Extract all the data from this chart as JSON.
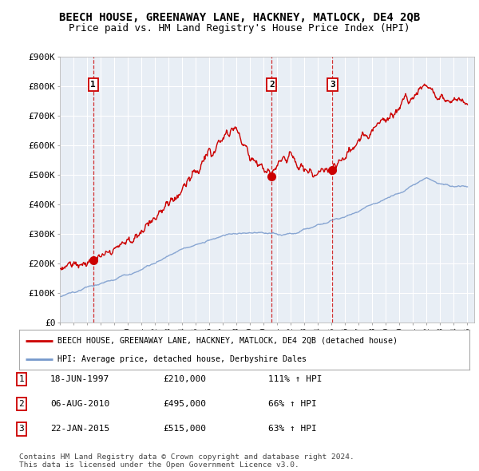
{
  "title": "BEECH HOUSE, GREENAWAY LANE, HACKNEY, MATLOCK, DE4 2QB",
  "subtitle": "Price paid vs. HM Land Registry's House Price Index (HPI)",
  "ylim": [
    0,
    900000
  ],
  "yticks": [
    0,
    100000,
    200000,
    300000,
    400000,
    500000,
    600000,
    700000,
    800000,
    900000
  ],
  "ytick_labels": [
    "£0",
    "£100K",
    "£200K",
    "£300K",
    "£400K",
    "£500K",
    "£600K",
    "£700K",
    "£800K",
    "£900K"
  ],
  "sale_dates_num": [
    1997.46,
    2010.59,
    2015.06
  ],
  "sale_prices": [
    210000,
    495000,
    515000
  ],
  "sale_labels": [
    "1",
    "2",
    "3"
  ],
  "sale_color": "#cc0000",
  "hpi_color": "#7799cc",
  "plot_bg_color": "#e8eef5",
  "dashed_line_color": "#cc0000",
  "legend_label_red": "BEECH HOUSE, GREENAWAY LANE, HACKNEY, MATLOCK, DE4 2QB (detached house)",
  "legend_label_blue": "HPI: Average price, detached house, Derbyshire Dales",
  "table_entries": [
    {
      "num": "1",
      "date": "18-JUN-1997",
      "price": "£210,000",
      "hpi": "111% ↑ HPI"
    },
    {
      "num": "2",
      "date": "06-AUG-2010",
      "price": "£495,000",
      "hpi": "66% ↑ HPI"
    },
    {
      "num": "3",
      "date": "22-JAN-2015",
      "price": "£515,000",
      "hpi": "63% ↑ HPI"
    }
  ],
  "footer": "Contains HM Land Registry data © Crown copyright and database right 2024.\nThis data is licensed under the Open Government Licence v3.0.",
  "bg_color": "#ffffff",
  "grid_color": "#ffffff",
  "title_fontsize": 10,
  "subtitle_fontsize": 9
}
